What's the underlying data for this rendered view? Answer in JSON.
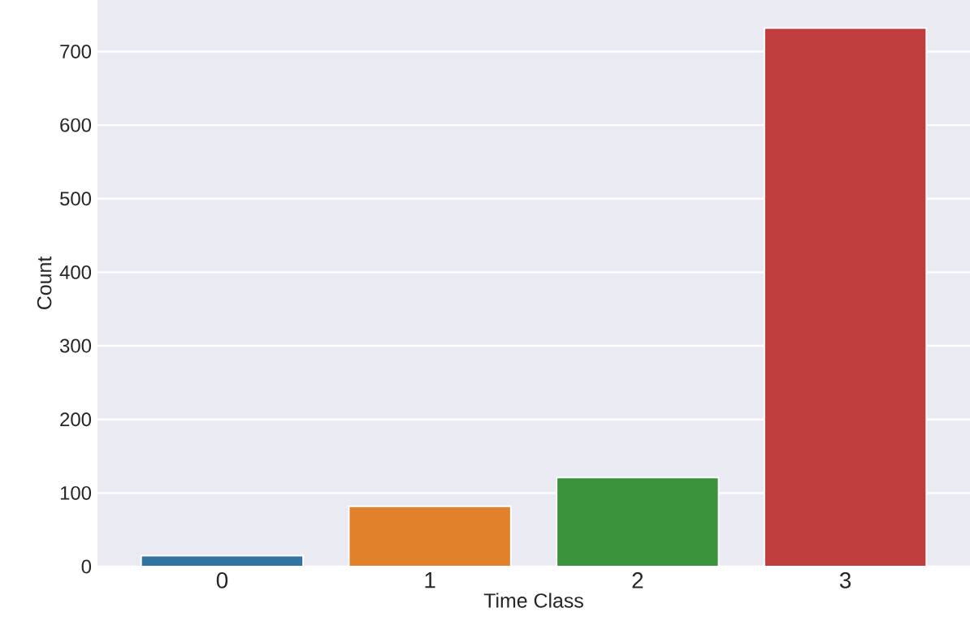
{
  "chart_data": {
    "type": "bar",
    "xlabel": "Time Class",
    "ylabel": "Count",
    "categories": [
      "0",
      "1",
      "2",
      "3"
    ],
    "values": [
      15,
      82,
      121,
      732
    ],
    "colors": [
      "#3274a1",
      "#e1812c",
      "#3a923a",
      "#c03d3e"
    ],
    "ylim": [
      0,
      770
    ],
    "yticks": [
      0,
      100,
      200,
      300,
      400,
      500,
      600,
      700
    ],
    "grid": true
  }
}
